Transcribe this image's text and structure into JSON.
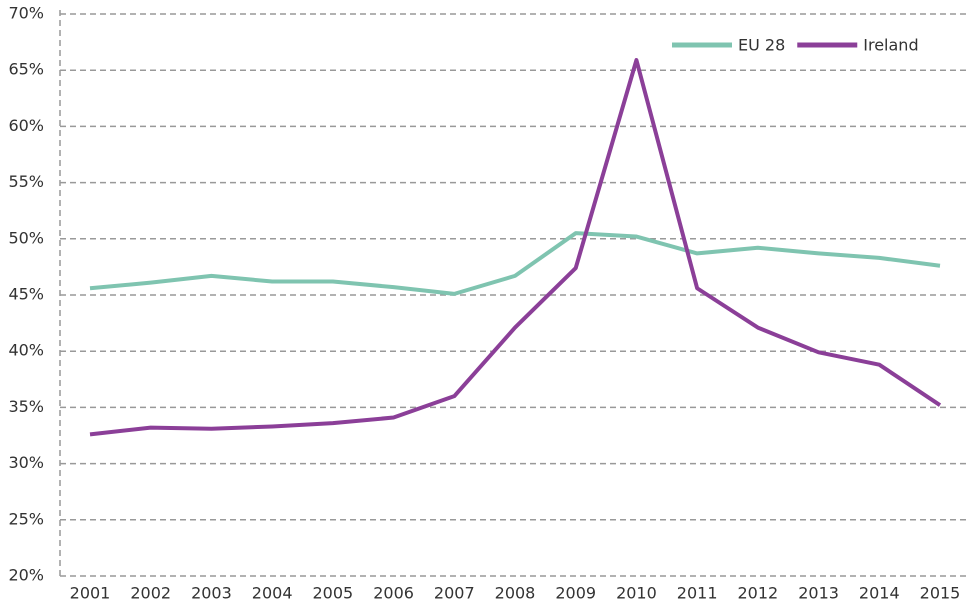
{
  "chart_data": {
    "type": "line",
    "categories": [
      "2001",
      "2002",
      "2003",
      "2004",
      "2005",
      "2006",
      "2007",
      "2008",
      "2009",
      "2010",
      "2011",
      "2012",
      "2013",
      "2014",
      "2015"
    ],
    "series": [
      {
        "name": "EU 28",
        "color": "#7fc4b0",
        "values": [
          45.6,
          46.1,
          46.7,
          46.2,
          46.2,
          45.7,
          45.1,
          46.7,
          50.5,
          50.2,
          48.7,
          49.2,
          48.7,
          48.3,
          47.6
        ]
      },
      {
        "name": "Ireland",
        "color": "#8b3f98",
        "values": [
          32.6,
          33.2,
          33.1,
          33.3,
          33.6,
          34.1,
          36.0,
          42.1,
          47.4,
          65.9,
          45.6,
          42.1,
          39.9,
          38.8,
          35.2
        ]
      }
    ],
    "ylim": [
      20,
      70
    ],
    "yticks": [
      {
        "value": 20,
        "label": "20%"
      },
      {
        "value": 25,
        "label": "25%"
      },
      {
        "value": 30,
        "label": "30%"
      },
      {
        "value": 35,
        "label": "35%"
      },
      {
        "value": 40,
        "label": "40%"
      },
      {
        "value": 45,
        "label": "45%"
      },
      {
        "value": 50,
        "label": "50%"
      },
      {
        "value": 55,
        "label": "55%"
      },
      {
        "value": 60,
        "label": "60%"
      },
      {
        "value": 65,
        "label": "65%"
      },
      {
        "value": 70,
        "label": "70%"
      }
    ],
    "grid": true,
    "legend": "top-right"
  }
}
